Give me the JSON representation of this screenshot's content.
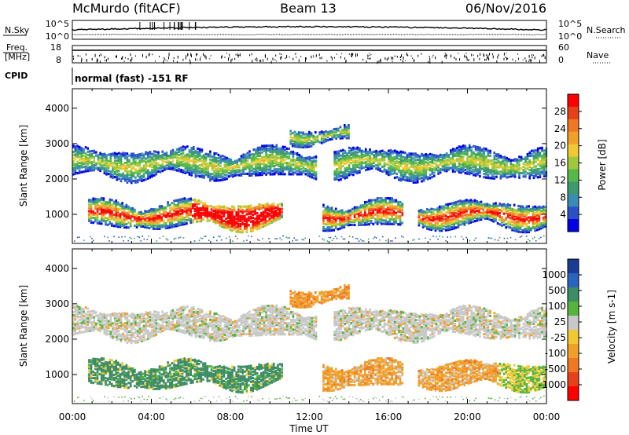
{
  "header": {
    "station": "McMurdo (fitACF)",
    "beam": "Beam 13",
    "date": "06/Nov/2016"
  },
  "sky_panel": {
    "left_label": "N.Sky",
    "right_label": "N.Search",
    "left_ticks": [
      "10^5",
      "10^0"
    ],
    "right_ticks": [
      "10^5",
      "10^0"
    ]
  },
  "freq_panel": {
    "left_label_line1": "Freq.",
    "left_label_line2": "[MHz]",
    "left_ticks": [
      "18",
      "8"
    ],
    "right_label": "Nave",
    "right_ticks": [
      "60",
      "0"
    ]
  },
  "cpid_panel": {
    "label": "CPID",
    "mode_text": "normal (fast) -151 RF"
  },
  "x_axis": {
    "label": "Time UT",
    "tick_labels": [
      "00:00",
      "04:00",
      "08:00",
      "12:00",
      "16:00",
      "20:00",
      "00:00"
    ]
  },
  "chart_data": [
    {
      "type": "heatmap",
      "name": "power-panel",
      "ylabel": "Slant Range [km]",
      "ylim": [
        180,
        4550
      ],
      "y_ticks": [
        1000,
        2000,
        3000,
        4000
      ],
      "xlim_hours": [
        0,
        24
      ],
      "colorbar_label": "Power [dB]",
      "colorbar_ticks": [
        "4",
        "8",
        "12",
        "16",
        "20",
        "24",
        "28"
      ],
      "colorbar_colors": [
        "#0000e6",
        "#2a50c8",
        "#3a8cb4",
        "#3c9a6e",
        "#56b848",
        "#a0c83c",
        "#f0c832",
        "#f0a028",
        "#f07820",
        "#e84018",
        "#ff0000"
      ],
      "bands": [
        {
          "range_km": [
            650,
            1400
          ],
          "hours": [
            0.8,
            24
          ],
          "gaps": [
            [
              10.6,
              12.6
            ],
            [
              16.7,
              17.4
            ]
          ]
        },
        {
          "range_km": [
            2050,
            2900
          ],
          "hours": [
            0,
            24
          ],
          "gaps": [
            [
              12.3,
              13.2
            ]
          ]
        },
        {
          "range_km": [
            3050,
            3500
          ],
          "hours": [
            11.0,
            14.0
          ],
          "gaps": []
        }
      ]
    },
    {
      "type": "heatmap",
      "name": "velocity-panel",
      "ylabel": "Slant Range [km]",
      "ylim": [
        180,
        4550
      ],
      "y_ticks": [
        1000,
        2000,
        3000,
        4000
      ],
      "xlim_hours": [
        0,
        24
      ],
      "colorbar_label": "Velocity [m s-1]",
      "colorbar_ticks": [
        "1000",
        "500",
        "100",
        "25",
        "-25",
        "-100",
        "-500",
        "-1000"
      ],
      "colorbar_colors": [
        "#1a3c96",
        "#2a64c0",
        "#3c8c64",
        "#56b43c",
        "#c8c8c8",
        "#f0c832",
        "#f0a028",
        "#f07820",
        "#e84018",
        "#ff0000"
      ]
    }
  ]
}
